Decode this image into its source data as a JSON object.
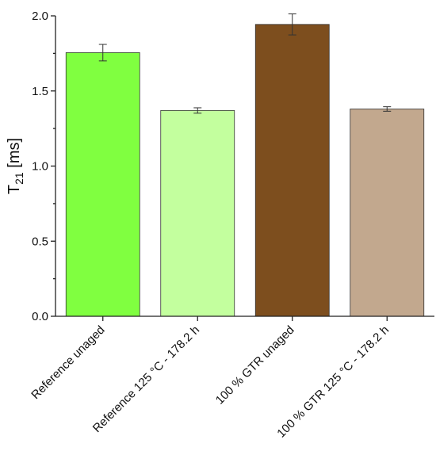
{
  "chart_data": {
    "type": "bar",
    "categories": [
      "Reference unaged",
      "Reference 125 °C - 178.2 h",
      "100 % GTR unaged",
      "100 % GTR 125 °C - 178.2 h"
    ],
    "values": [
      1.755,
      1.37,
      1.943,
      1.38
    ],
    "errors": [
      0.055,
      0.018,
      0.07,
      0.015
    ],
    "colors": [
      "#80ff40",
      "#c3ff9e",
      "#7d4e1e",
      "#c2a88e"
    ],
    "ylabel_main": "T",
    "ylabel_sub": "21",
    "ylabel_unit": " [ms]",
    "ylim": [
      0,
      2.0
    ],
    "yticks": [
      "0.0",
      "0.5",
      "1.0",
      "1.5",
      "2.0"
    ],
    "grid": false,
    "legend": "none"
  }
}
